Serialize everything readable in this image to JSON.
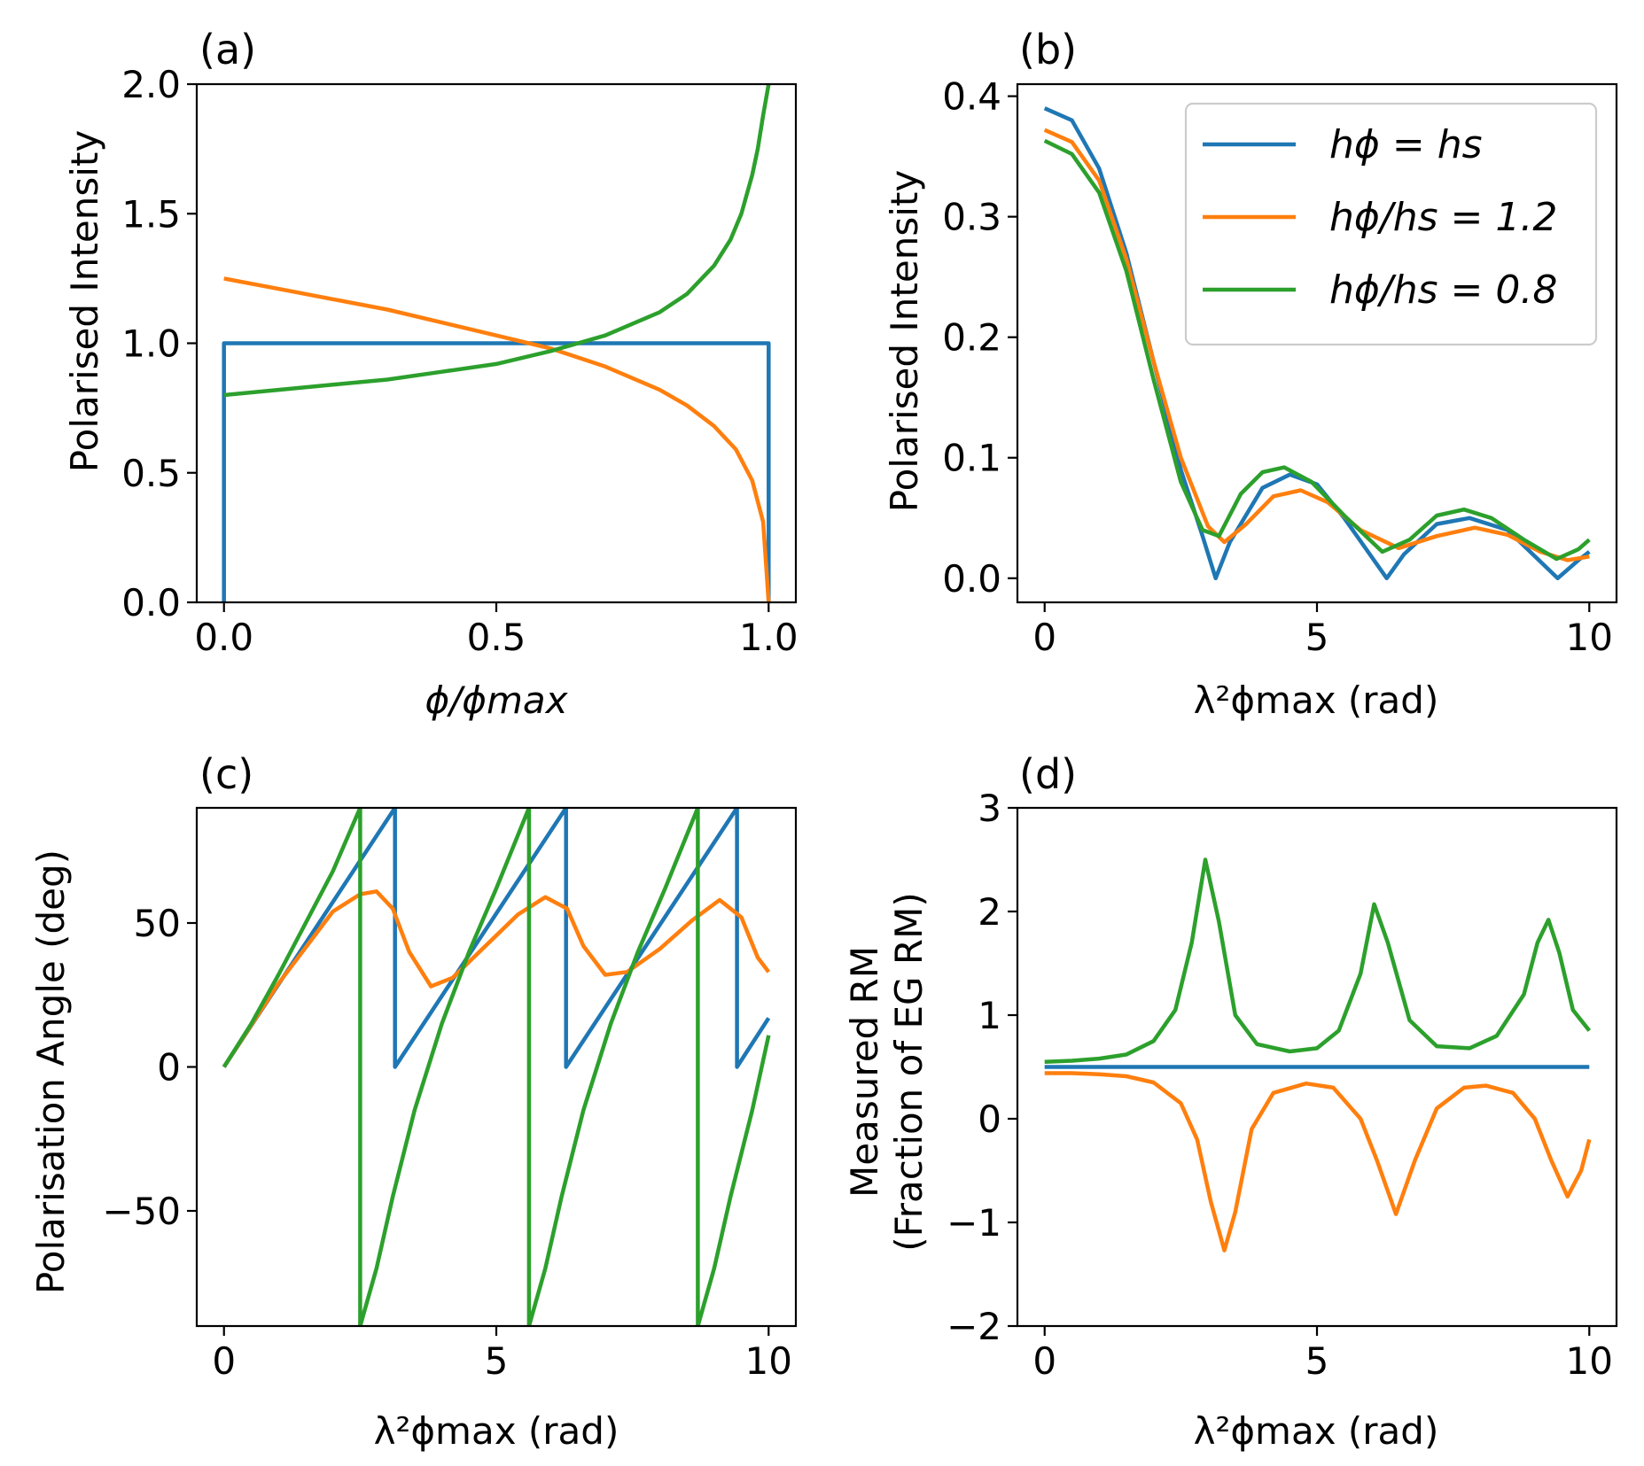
{
  "colors": {
    "blue": "#1f77b4",
    "orange": "#ff7f0e",
    "green": "#2ca02c"
  },
  "chart_data": [
    {
      "id": "a",
      "panel_label": "(a)",
      "type": "line",
      "xlabel": "ϕ/ϕmax",
      "ylabel": "Polarised Intensity",
      "xlim": [
        -0.05,
        1.05
      ],
      "ylim": [
        0,
        2.0
      ],
      "xticks": [
        0.0,
        0.5,
        1.0
      ],
      "xtick_labels": [
        "0.0",
        "0.5",
        "1.0"
      ],
      "yticks": [
        0.0,
        0.5,
        1.0,
        1.5,
        2.0
      ],
      "ytick_labels": [
        "0.0",
        "0.5",
        "1.0",
        "1.5",
        "2.0"
      ],
      "series": [
        {
          "name": "hϕ = hs",
          "color": "#1f77b4",
          "x": [
            0,
            0,
            1,
            1
          ],
          "y": [
            0,
            1.0,
            1.0,
            0
          ]
        },
        {
          "name": "hϕ/hs = 1.2",
          "color": "#ff7f0e",
          "x": [
            0,
            0.1,
            0.2,
            0.3,
            0.4,
            0.5,
            0.6,
            0.7,
            0.8,
            0.85,
            0.9,
            0.94,
            0.97,
            0.99,
            1.0
          ],
          "y": [
            1.25,
            1.21,
            1.17,
            1.13,
            1.08,
            1.03,
            0.98,
            0.91,
            0.82,
            0.76,
            0.68,
            0.59,
            0.47,
            0.31,
            0.0
          ]
        },
        {
          "name": "hϕ/hs = 0.8",
          "color": "#2ca02c",
          "x": [
            0,
            0.1,
            0.2,
            0.3,
            0.4,
            0.5,
            0.6,
            0.7,
            0.8,
            0.85,
            0.9,
            0.93,
            0.95,
            0.97,
            0.98,
            0.99,
            1.0
          ],
          "y": [
            0.8,
            0.82,
            0.84,
            0.86,
            0.89,
            0.92,
            0.97,
            1.03,
            1.12,
            1.19,
            1.3,
            1.4,
            1.5,
            1.65,
            1.75,
            1.88,
            2.0
          ]
        }
      ]
    },
    {
      "id": "b",
      "panel_label": "(b)",
      "type": "line",
      "xlabel": "λ²ϕmax (rad)",
      "ylabel": "Polarised Intensity",
      "xlim": [
        -0.5,
        10.5
      ],
      "ylim": [
        -0.02,
        0.41
      ],
      "xticks": [
        0,
        5,
        10
      ],
      "xtick_labels": [
        "0",
        "5",
        "10"
      ],
      "yticks": [
        0.0,
        0.1,
        0.2,
        0.3,
        0.4
      ],
      "ytick_labels": [
        "0.0",
        "0.1",
        "0.2",
        "0.3",
        "0.4"
      ],
      "legend": {
        "position": "top-right",
        "entries": [
          "hϕ = hs",
          "hϕ/hs = 1.2",
          "hϕ/hs = 0.8"
        ]
      },
      "series": [
        {
          "name": "hϕ = hs",
          "color": "#1f77b4",
          "x": [
            0,
            0.5,
            1.0,
            1.5,
            2.0,
            2.5,
            2.9,
            3.14,
            3.4,
            4.0,
            4.5,
            5.0,
            5.5,
            6.28,
            6.6,
            7.2,
            7.8,
            8.5,
            9.42,
            9.8,
            10.0
          ],
          "y": [
            0.39,
            0.38,
            0.34,
            0.27,
            0.18,
            0.09,
            0.035,
            0.0,
            0.03,
            0.075,
            0.086,
            0.078,
            0.05,
            0.0,
            0.02,
            0.045,
            0.05,
            0.04,
            0.0,
            0.015,
            0.022
          ]
        },
        {
          "name": "hϕ/hs = 1.2",
          "color": "#ff7f0e",
          "x": [
            0,
            0.5,
            1.0,
            1.5,
            2.0,
            2.5,
            3.0,
            3.3,
            3.7,
            4.2,
            4.7,
            5.2,
            5.8,
            6.5,
            7.2,
            7.9,
            8.5,
            9.1,
            9.6,
            10.0
          ],
          "y": [
            0.372,
            0.362,
            0.33,
            0.265,
            0.18,
            0.1,
            0.043,
            0.03,
            0.045,
            0.068,
            0.073,
            0.063,
            0.04,
            0.025,
            0.035,
            0.042,
            0.036,
            0.022,
            0.015,
            0.018
          ]
        },
        {
          "name": "hϕ/hs = 0.8",
          "color": "#2ca02c",
          "x": [
            0,
            0.5,
            1.0,
            1.5,
            2.0,
            2.5,
            2.9,
            3.2,
            3.6,
            4.0,
            4.4,
            4.9,
            5.5,
            6.2,
            6.7,
            7.2,
            7.7,
            8.2,
            8.8,
            9.4,
            9.8,
            10.0
          ],
          "y": [
            0.363,
            0.352,
            0.32,
            0.255,
            0.165,
            0.08,
            0.04,
            0.035,
            0.07,
            0.088,
            0.092,
            0.08,
            0.052,
            0.022,
            0.032,
            0.052,
            0.057,
            0.05,
            0.032,
            0.016,
            0.024,
            0.032
          ]
        }
      ]
    },
    {
      "id": "c",
      "panel_label": "(c)",
      "type": "line",
      "xlabel": "λ²ϕmax (rad)",
      "ylabel": "Polarisation Angle (deg)",
      "xlim": [
        -0.5,
        10.5
      ],
      "ylim": [
        -90,
        90
      ],
      "xticks": [
        0,
        5,
        10
      ],
      "xtick_labels": [
        "0",
        "5",
        "10"
      ],
      "yticks": [
        -50,
        0,
        50
      ],
      "ytick_labels": [
        "−50",
        "0",
        "50"
      ],
      "series": [
        {
          "name": "hϕ = hs",
          "color": "#1f77b4",
          "x": [
            0,
            3.14,
            3.14,
            6.28,
            6.28,
            9.42,
            9.42,
            10.0
          ],
          "y": [
            0,
            90,
            0,
            90,
            0,
            90,
            0,
            17
          ]
        },
        {
          "name": "hϕ/hs = 1.2",
          "color": "#ff7f0e",
          "x": [
            0,
            1.0,
            2.0,
            2.5,
            2.8,
            3.1,
            3.4,
            3.8,
            4.2,
            4.8,
            5.4,
            5.9,
            6.3,
            6.6,
            7.0,
            7.4,
            8.0,
            8.6,
            9.1,
            9.5,
            9.8,
            10.0
          ],
          "y": [
            0,
            29,
            54,
            60,
            61,
            55,
            40,
            28,
            31,
            42,
            53,
            59,
            55,
            42,
            32,
            33,
            41,
            51,
            58,
            52,
            38,
            33
          ]
        },
        {
          "name": "hϕ/hs = 0.8",
          "color": "#2ca02c",
          "x": [
            0,
            0.5,
            1.0,
            1.5,
            2.0,
            2.5,
            2.5,
            2.8,
            3.1,
            3.5,
            4.0,
            4.5,
            5.0,
            5.6,
            5.6,
            5.9,
            6.2,
            6.6,
            7.1,
            7.6,
            8.1,
            8.7,
            8.7,
            9.0,
            9.3,
            9.7,
            10.0
          ],
          "y": [
            0,
            15,
            32,
            50,
            68,
            90,
            -90,
            -70,
            -45,
            -15,
            15,
            40,
            62,
            90,
            -90,
            -70,
            -45,
            -15,
            15,
            40,
            62,
            90,
            -90,
            -70,
            -45,
            -15,
            11
          ]
        }
      ]
    },
    {
      "id": "d",
      "panel_label": "(d)",
      "type": "line",
      "xlabel": "λ²ϕmax (rad)",
      "ylabel": "Measured RM",
      "ylabel2": "(Fraction of EG RM)",
      "xlim": [
        -0.5,
        10.5
      ],
      "ylim": [
        -2,
        3
      ],
      "xticks": [
        0,
        5,
        10
      ],
      "xtick_labels": [
        "0",
        "5",
        "10"
      ],
      "yticks": [
        -2,
        -1,
        0,
        1,
        2,
        3
      ],
      "ytick_labels": [
        "−2",
        "−1",
        "0",
        "1",
        "2",
        "3"
      ],
      "series": [
        {
          "name": "hϕ = hs",
          "color": "#1f77b4",
          "x": [
            0,
            10
          ],
          "y": [
            0.5,
            0.5
          ]
        },
        {
          "name": "hϕ/hs = 0.8",
          "color": "#2ca02c",
          "x": [
            0,
            0.5,
            1.0,
            1.5,
            2.0,
            2.4,
            2.7,
            2.95,
            3.2,
            3.5,
            3.9,
            4.5,
            5.0,
            5.4,
            5.8,
            6.05,
            6.3,
            6.7,
            7.2,
            7.8,
            8.3,
            8.8,
            9.05,
            9.25,
            9.45,
            9.7,
            10.0
          ],
          "y": [
            0.55,
            0.56,
            0.58,
            0.62,
            0.75,
            1.05,
            1.7,
            2.5,
            1.9,
            1.0,
            0.72,
            0.65,
            0.68,
            0.85,
            1.4,
            2.07,
            1.7,
            0.95,
            0.7,
            0.68,
            0.8,
            1.2,
            1.7,
            1.92,
            1.6,
            1.05,
            0.85
          ]
        },
        {
          "name": "hϕ/hs = 1.2",
          "color": "#ff7f0e",
          "x": [
            0,
            0.5,
            1.0,
            1.5,
            2.0,
            2.5,
            2.8,
            3.05,
            3.3,
            3.5,
            3.8,
            4.2,
            4.8,
            5.3,
            5.8,
            6.1,
            6.45,
            6.8,
            7.2,
            7.7,
            8.1,
            8.6,
            9.0,
            9.3,
            9.6,
            9.85,
            10.0
          ],
          "y": [
            0.44,
            0.44,
            0.43,
            0.41,
            0.35,
            0.15,
            -0.2,
            -0.8,
            -1.27,
            -0.9,
            -0.1,
            0.25,
            0.34,
            0.3,
            0.0,
            -0.4,
            -0.92,
            -0.4,
            0.1,
            0.3,
            0.32,
            0.25,
            0.0,
            -0.4,
            -0.75,
            -0.5,
            -0.2
          ]
        }
      ]
    }
  ]
}
